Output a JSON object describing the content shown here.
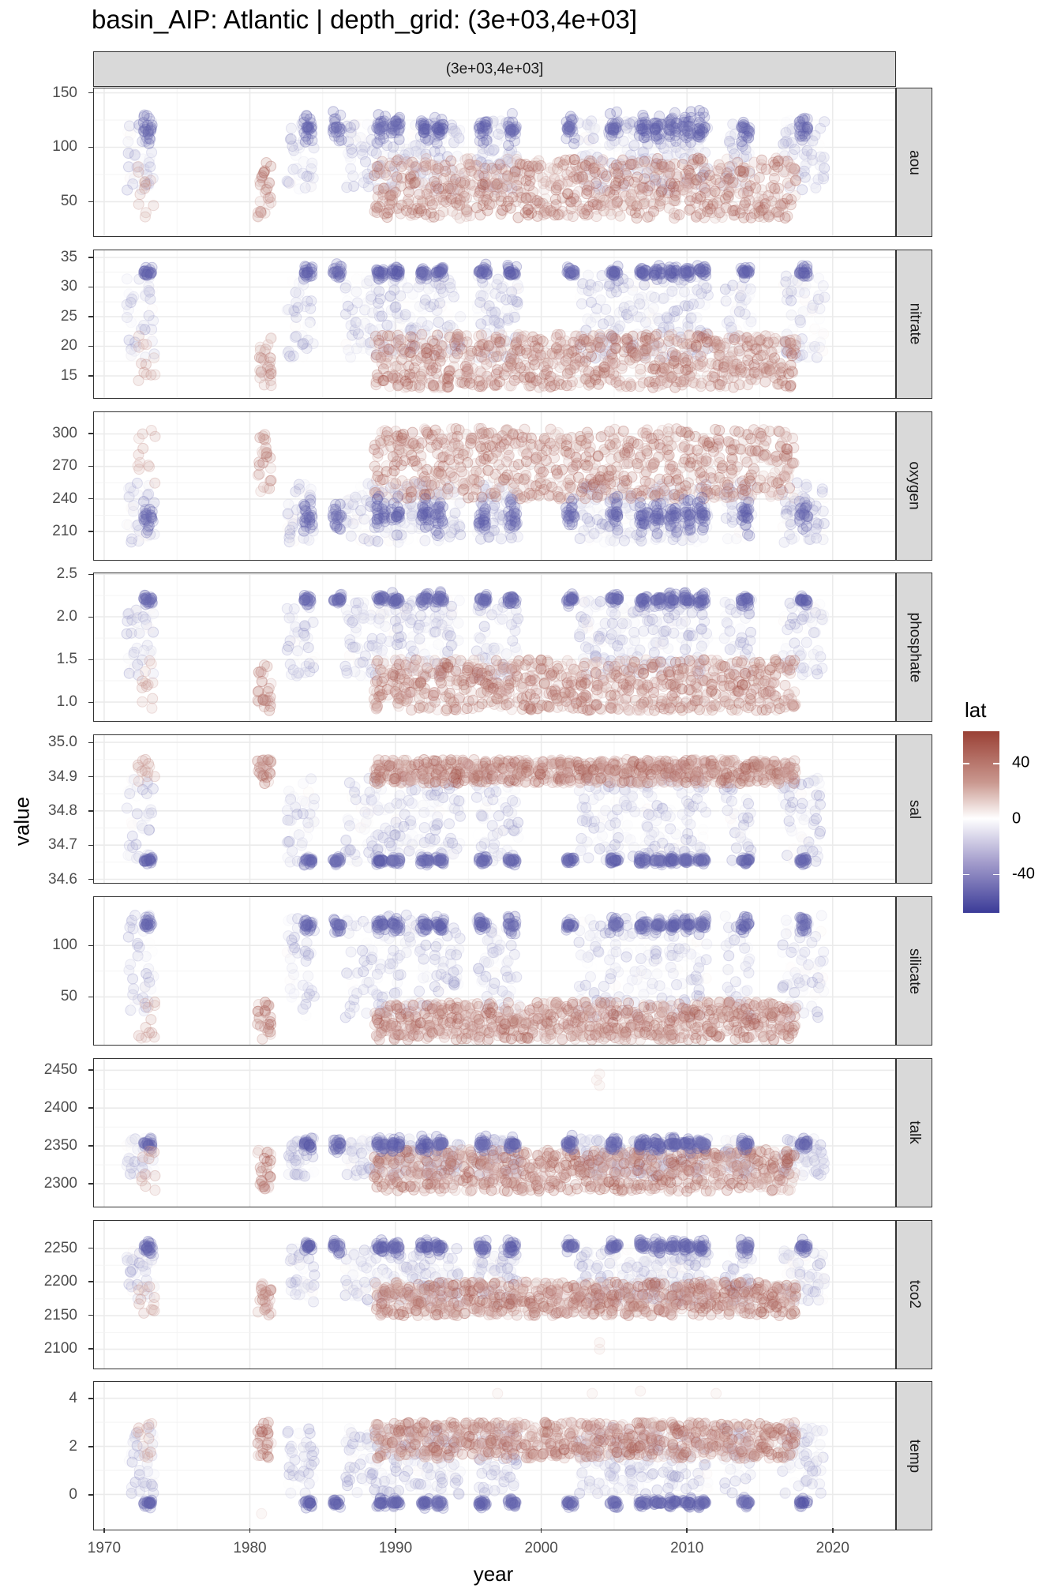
{
  "chart_data": {
    "type": "scatter",
    "title": "basin_AIP: Atlantic | depth_grid: (3e+03,4e+03]",
    "column_strip": "(3e+03,4e+03]",
    "xlabel": "year",
    "ylabel": "value",
    "xlim": [
      1969.3,
      2024.4
    ],
    "x_ticks": [
      1970,
      1980,
      1990,
      2000,
      2010,
      2020
    ],
    "x_tick_labels": [
      "1970",
      "1980",
      "1990",
      "2000",
      "2010",
      "2020"
    ],
    "color_legend": {
      "title": "lat",
      "ticks": [
        "40",
        "0",
        "-40"
      ],
      "tick_values": [
        40,
        0,
        -40
      ],
      "range": [
        -68,
        63
      ],
      "low_color": "#3b3b98",
      "mid_color": "#ffffff",
      "high_color": "#9a4035"
    },
    "point_alpha": 0.2,
    "south_years": [
      1973,
      1984,
      1986,
      1989,
      1990,
      1992,
      1993,
      1996,
      1998,
      2002,
      2005,
      2007,
      2008,
      2009,
      2010,
      2011,
      2014,
      2018
    ],
    "north_years": [
      1981,
      1989,
      1990,
      1991,
      1992,
      1993,
      1994,
      1995,
      1996,
      1997,
      1998,
      1999,
      2000,
      2001,
      2002,
      2003,
      2004,
      2005,
      2006,
      2007,
      2008,
      2009,
      2010,
      2011,
      2012,
      2013,
      2014,
      2015,
      2016,
      2017
    ],
    "mid_years": [
      1972,
      1973,
      1983,
      1984,
      1987,
      1988,
      1989,
      1990,
      1991,
      1992,
      1993,
      1994,
      1996,
      1997,
      1998,
      2003,
      2004,
      2005,
      2006,
      2007,
      2008,
      2009,
      2010,
      2011,
      2013,
      2014,
      2017,
      2018,
      2019
    ],
    "panels": [
      {
        "name": "aou",
        "ylim": [
          17,
          154
        ],
        "ticks": [
          50,
          100,
          150
        ],
        "tick_labels": [
          "50",
          "100",
          "150"
        ],
        "south": [
          100,
          135
        ],
        "north": [
          35,
          90
        ],
        "mid": [
          60,
          125
        ],
        "outliers": []
      },
      {
        "name": "nitrate",
        "ylim": [
          11,
          36.2
        ],
        "ticks": [
          15,
          20,
          25,
          30,
          35
        ],
        "tick_labels": [
          "15",
          "20",
          "25",
          "30",
          "35"
        ],
        "south": [
          31,
          34
        ],
        "north": [
          13,
          22
        ],
        "mid": [
          18,
          32
        ],
        "outliers": []
      },
      {
        "name": "oxygen",
        "ylim": [
          182.5,
          320
        ],
        "ticks": [
          210,
          240,
          270,
          300
        ],
        "tick_labels": [
          "210",
          "240",
          "270",
          "300"
        ],
        "south": [
          205,
          245
        ],
        "north": [
          240,
          305
        ],
        "mid": [
          200,
          255
        ],
        "outliers": []
      },
      {
        "name": "phosphate",
        "ylim": [
          0.76,
          2.51
        ],
        "ticks": [
          1.0,
          1.5,
          2.0,
          2.5
        ],
        "tick_labels": [
          "1.0",
          "1.5",
          "2.0",
          "2.5"
        ],
        "south": [
          2.1,
          2.3
        ],
        "north": [
          0.9,
          1.5
        ],
        "mid": [
          1.3,
          2.2
        ],
        "outliers": []
      },
      {
        "name": "sal",
        "ylim": [
          34.585,
          35.021
        ],
        "ticks": [
          34.6,
          34.7,
          34.8,
          34.9,
          35.0
        ],
        "tick_labels": [
          "34.6",
          "34.7",
          "34.8",
          "34.9",
          "35.0"
        ],
        "south": [
          34.64,
          34.67
        ],
        "north": [
          34.88,
          34.95
        ],
        "mid": [
          34.65,
          34.9
        ],
        "outliers": []
      },
      {
        "name": "silicate",
        "ylim": [
          2,
          147
        ],
        "ticks": [
          50,
          100
        ],
        "tick_labels": [
          "50",
          "100"
        ],
        "south": [
          110,
          130
        ],
        "north": [
          8,
          45
        ],
        "mid": [
          30,
          130
        ],
        "outliers": []
      },
      {
        "name": "talk",
        "ylim": [
          2267.6,
          2465
        ],
        "ticks": [
          2300,
          2350,
          2400,
          2450
        ],
        "tick_labels": [
          "2300",
          "2350",
          "2400",
          "2450"
        ],
        "south": [
          2340,
          2365
        ],
        "north": [
          2290,
          2345
        ],
        "mid": [
          2310,
          2360
        ],
        "outliers": [
          [
            2004,
            2430
          ],
          [
            2004,
            2445
          ],
          [
            2003.8,
            2437
          ]
        ]
      },
      {
        "name": "tco2",
        "ylim": [
          2069,
          2291
        ],
        "ticks": [
          2100,
          2150,
          2200,
          2250
        ],
        "tick_labels": [
          "2100",
          "2150",
          "2200",
          "2250"
        ],
        "south": [
          2240,
          2265
        ],
        "north": [
          2150,
          2200
        ],
        "mid": [
          2170,
          2250
        ],
        "outliers": [
          [
            2004,
            2100
          ],
          [
            2004,
            2110
          ]
        ]
      },
      {
        "name": "temp",
        "ylim": [
          -1.53,
          4.68
        ],
        "ticks": [
          0,
          2,
          4
        ],
        "tick_labels": [
          "0",
          "2",
          "4"
        ],
        "south": [
          -0.6,
          -0.1
        ],
        "north": [
          1.5,
          3.0
        ],
        "mid": [
          0,
          2.8
        ],
        "outliers": [
          [
            1997,
            4.2
          ],
          [
            2003.5,
            4.2
          ],
          [
            2006.8,
            4.3
          ],
          [
            2012,
            4.2
          ],
          [
            1980.8,
            -0.8
          ]
        ]
      }
    ]
  }
}
